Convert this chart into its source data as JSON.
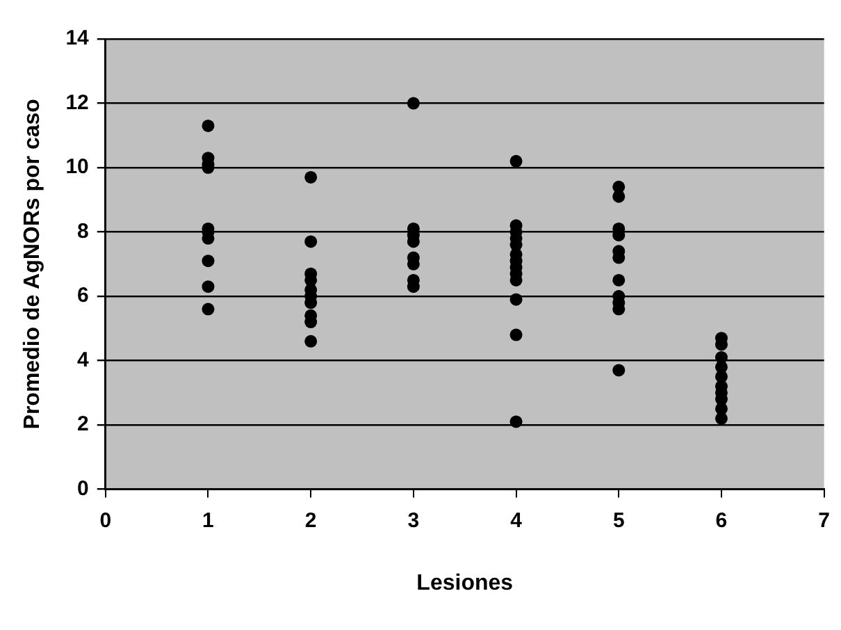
{
  "chart_data": {
    "type": "scatter",
    "xlabel": "Lesiones",
    "ylabel": "Promedio de AgNORs por caso",
    "x": [
      1,
      1,
      1,
      1,
      1,
      1,
      1,
      1,
      1,
      1,
      2,
      2,
      2,
      2,
      2,
      2,
      2,
      2,
      2,
      2,
      3,
      3,
      3,
      3,
      3,
      3,
      3,
      3,
      4,
      4,
      4,
      4,
      4,
      4,
      4,
      4,
      4,
      4,
      4,
      4,
      4,
      5,
      5,
      5,
      5,
      5,
      5,
      5,
      5,
      5,
      5,
      5,
      6,
      6,
      6,
      6,
      6,
      6,
      6,
      6,
      6,
      6
    ],
    "values": [
      11.3,
      10.3,
      10.1,
      10.0,
      8.1,
      8.0,
      7.8,
      7.1,
      6.3,
      5.6,
      9.7,
      7.7,
      6.7,
      6.5,
      6.2,
      6.0,
      5.8,
      5.4,
      5.2,
      4.6,
      12.0,
      8.1,
      7.9,
      7.7,
      7.2,
      7.0,
      6.5,
      6.3,
      10.2,
      8.2,
      8.0,
      7.8,
      7.6,
      7.3,
      7.1,
      6.9,
      6.7,
      6.5,
      5.9,
      4.8,
      2.1,
      9.4,
      9.1,
      8.1,
      7.9,
      7.4,
      7.2,
      6.5,
      6.0,
      5.8,
      5.6,
      3.7,
      4.7,
      4.5,
      4.1,
      3.8,
      3.5,
      3.2,
      3.0,
      2.8,
      2.5,
      2.2
    ],
    "color": "#000000",
    "marker": "circle",
    "xlim": [
      0,
      7
    ],
    "xticks": [
      0,
      1,
      2,
      3,
      4,
      5,
      6,
      7
    ],
    "ylim": [
      0,
      14
    ],
    "yticks": [
      0,
      2,
      4,
      6,
      8,
      10,
      12,
      14
    ],
    "grid": "y",
    "legend": false
  }
}
